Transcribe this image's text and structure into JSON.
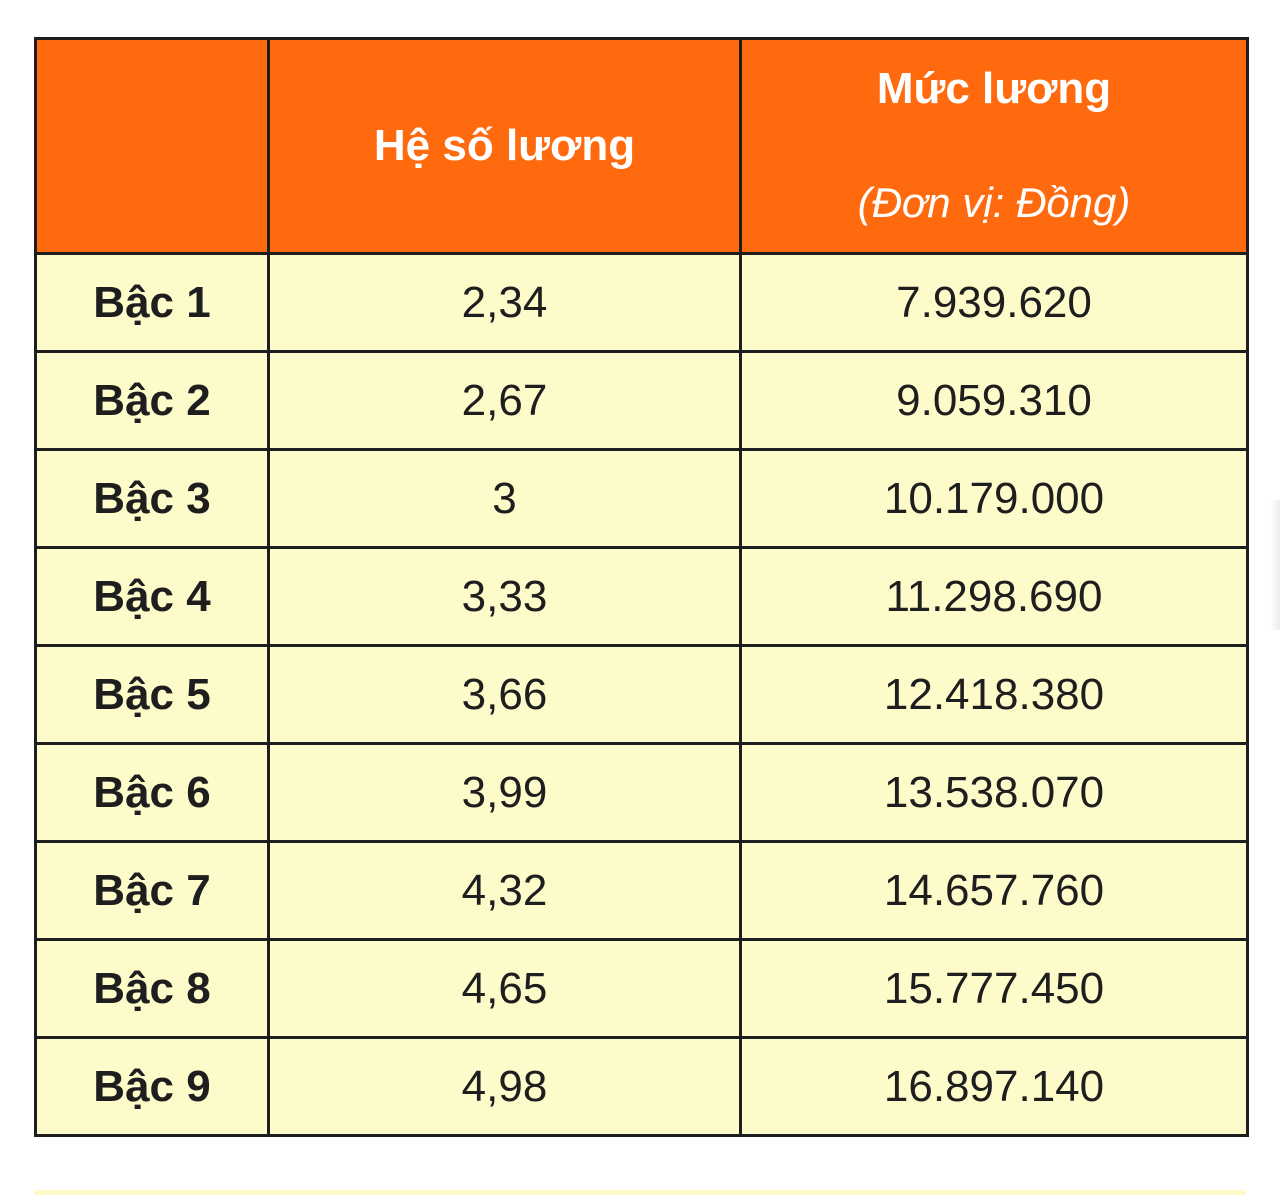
{
  "table": {
    "header": {
      "col1": "",
      "col2": "Hệ số lương",
      "col3_title": "Mức lương",
      "col3_unit": "(Đơn vị: Đồng)"
    },
    "rows": [
      {
        "level": "Bậc 1",
        "coefficient": "2,34",
        "salary": "7.939.620"
      },
      {
        "level": "Bậc 2",
        "coefficient": "2,67",
        "salary": "9.059.310"
      },
      {
        "level": "Bậc 3",
        "coefficient": "3",
        "salary": "10.179.000"
      },
      {
        "level": "Bậc 4",
        "coefficient": "3,33",
        "salary": "11.298.690"
      },
      {
        "level": "Bậc 5",
        "coefficient": "3,66",
        "salary": "12.418.380"
      },
      {
        "level": "Bậc 6",
        "coefficient": "3,99",
        "salary": "13.538.070"
      },
      {
        "level": "Bậc 7",
        "coefficient": "4,32",
        "salary": "14.657.760"
      },
      {
        "level": "Bậc 8",
        "coefficient": "4,65",
        "salary": "15.777.450"
      },
      {
        "level": "Bậc 9",
        "coefficient": "4,98",
        "salary": "16.897.140"
      }
    ]
  },
  "colors": {
    "header_bg": "#ff6a0e",
    "header_text": "#ffffff",
    "body_bg": "#fefbcb",
    "body_text": "#1e1e1e",
    "border": "#1e1e1e"
  }
}
